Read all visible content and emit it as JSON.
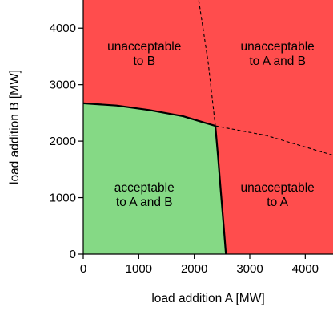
{
  "chart_data": {
    "type": "area",
    "xlabel": "load addition A [MW]",
    "ylabel": "load addition B [MW]",
    "xlim": [
      0,
      4500
    ],
    "ylim": [
      0,
      4500
    ],
    "x_ticks": [
      0,
      1000,
      2000,
      3000,
      4000
    ],
    "y_ticks": [
      0,
      1000,
      2000,
      3000,
      4000
    ],
    "x_tick_labels": [
      "0",
      "1000",
      "2000",
      "3000",
      "4000"
    ],
    "y_tick_labels": [
      "0",
      "1000",
      "2000",
      "3000",
      "4000"
    ],
    "grid": false,
    "colors": {
      "acceptable": "#85d985",
      "unacceptable": "#ff4d4d",
      "boundary": "#000000"
    },
    "regions": [
      {
        "label": "acceptable\nto A and B",
        "status": "acceptable",
        "label_pos": [
          1100,
          1050
        ]
      },
      {
        "label": "unacceptable\nto B",
        "status": "unacceptable",
        "label_pos": [
          1100,
          3550
        ]
      },
      {
        "label": "unacceptable\nto A and B",
        "status": "unacceptable",
        "label_pos": [
          3500,
          3550
        ]
      },
      {
        "label": "unacceptable\nto A",
        "status": "unacceptable",
        "label_pos": [
          3500,
          1050
        ]
      }
    ],
    "boundary_B": {
      "style": "solid",
      "x": [
        0,
        600,
        1200,
        1800,
        2380
      ],
      "y": [
        2670,
        2630,
        2550,
        2440,
        2270
      ]
    },
    "boundary_A": {
      "style": "solid",
      "x": [
        2380,
        2430,
        2480,
        2530,
        2570
      ],
      "y": [
        2270,
        1700,
        1100,
        500,
        0
      ]
    },
    "extension_A": {
      "style": "dashed",
      "x": [
        2380,
        2250,
        2080
      ],
      "y": [
        2270,
        3400,
        4500
      ]
    },
    "extension_B": {
      "style": "dashed",
      "x": [
        2380,
        3300,
        4500
      ],
      "y": [
        2270,
        2100,
        1750
      ]
    }
  }
}
